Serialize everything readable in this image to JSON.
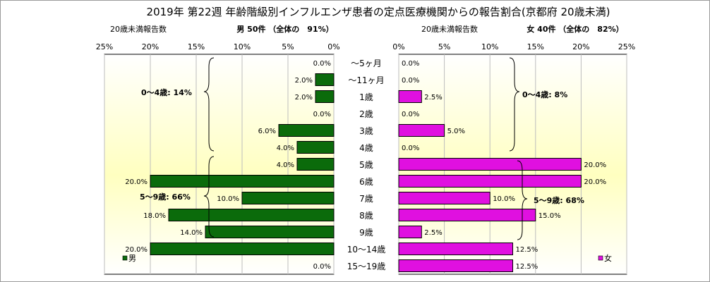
{
  "title": "2019年 第22週 年齢階級別インフルエンザ患者の定点医療機関からの報告割合(京都府 20歳未満)",
  "colors": {
    "male": "#0b6b0b",
    "female": "#e010e0",
    "panel_top": "#ffffff",
    "panel_mid": "#ffffc0"
  },
  "chart_data": [
    {
      "type": "bar",
      "orientation": "horizontal",
      "side": "male",
      "subtitle_left": "20歳未満報告数",
      "subtitle_right": "男 50件 （全体の　91%）",
      "x_ticks": [
        "25%",
        "20%",
        "15%",
        "10%",
        "5%",
        "0%"
      ],
      "xlim": [
        0,
        25
      ],
      "reversed": true,
      "categories": [
        "〜5ヶ月",
        "〜11ヶ月",
        "1歳",
        "2歳",
        "3歳",
        "4歳",
        "5歳",
        "6歳",
        "7歳",
        "8歳",
        "9歳",
        "10〜14歳",
        "15〜19歳"
      ],
      "values": [
        0.0,
        2.0,
        2.0,
        0.0,
        6.0,
        4.0,
        4.0,
        20.0,
        10.0,
        18.0,
        14.0,
        20.0,
        0.0
      ],
      "labels": [
        "0.0%",
        "2.0%",
        "2.0%",
        "0.0%",
        "6.0%",
        "4.0%",
        "4.0%",
        "20.0%",
        "10.0%",
        "18.0%",
        "14.0%",
        "20.0%",
        "0.0%"
      ],
      "legend": "男",
      "group_labels": [
        "0〜4歳: 14%",
        "5〜9歳: 66%"
      ]
    },
    {
      "type": "bar",
      "orientation": "horizontal",
      "side": "female",
      "subtitle_left": "20歳未満報告数",
      "subtitle_right": "女 40件 （全体の　82%）",
      "x_ticks": [
        "0%",
        "5%",
        "10%",
        "15%",
        "20%",
        "25%"
      ],
      "xlim": [
        0,
        25
      ],
      "categories": [
        "〜5ヶ月",
        "〜11ヶ月",
        "1歳",
        "2歳",
        "3歳",
        "4歳",
        "5歳",
        "6歳",
        "7歳",
        "8歳",
        "9歳",
        "10〜14歳",
        "15〜19歳"
      ],
      "values": [
        0.0,
        0.0,
        2.5,
        0.0,
        5.0,
        0.0,
        20.0,
        20.0,
        10.0,
        15.0,
        2.5,
        12.5,
        12.5
      ],
      "labels": [
        "0.0%",
        "0.0%",
        "2.5%",
        "0.0%",
        "5.0%",
        "0.0%",
        "20.0%",
        "20.0%",
        "10.0%",
        "15.0%",
        "2.5%",
        "12.5%",
        "12.5%"
      ],
      "legend": "女",
      "group_labels": [
        "0〜4歳: 8%",
        "5〜9歳: 68%"
      ]
    }
  ]
}
